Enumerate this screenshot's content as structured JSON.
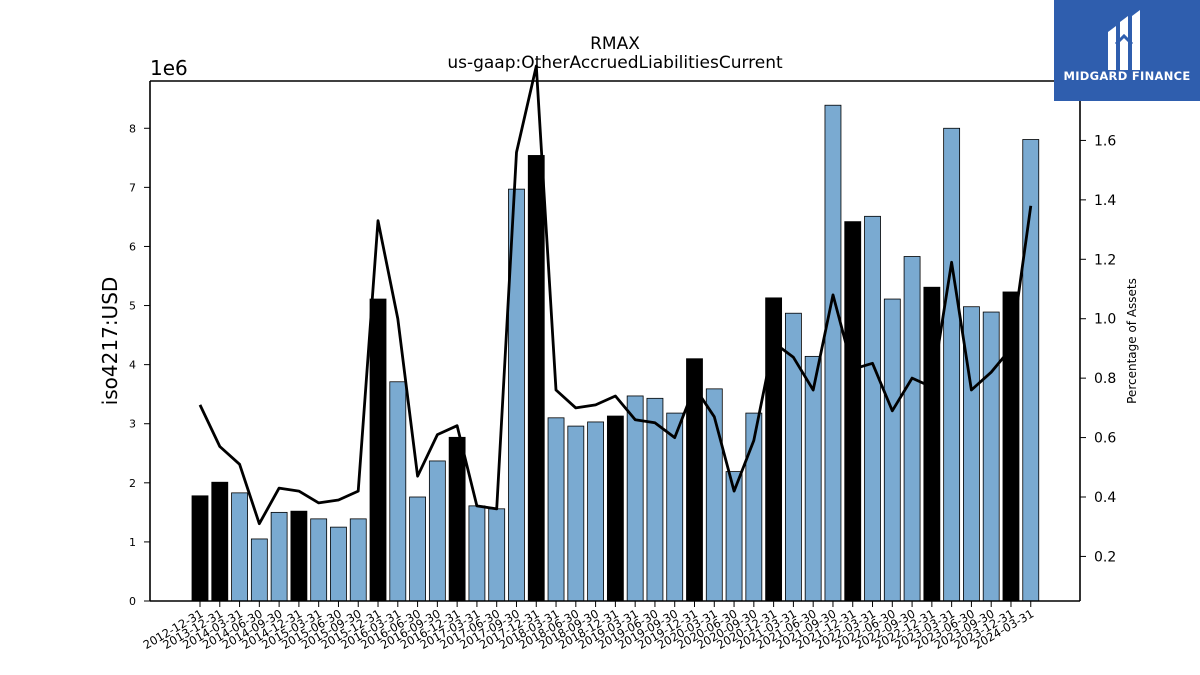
{
  "chart_data": {
    "type": "bar",
    "title": "RMAX",
    "subtitle": "us-gaap:OtherAccruedLiabilitiesCurrent",
    "ylabel": "iso4217:USD",
    "y_offset_label": "1e6",
    "y2label": "Percentage of Assets",
    "ylim": [
      0,
      8800000
    ],
    "y2lim": [
      0.05,
      1.8
    ],
    "yticks": [
      0,
      1,
      2,
      3,
      4,
      5,
      6,
      7,
      8
    ],
    "y2ticks": [
      0.2,
      0.4,
      0.6,
      0.8,
      1.0,
      1.2,
      1.4,
      1.6
    ],
    "categories": [
      "2012-12-31",
      "2013-12-31",
      "2014-03-31",
      "2014-06-30",
      "2014-09-30",
      "2014-12-31",
      "2015-03-31",
      "2015-06-30",
      "2015-09-30",
      "2015-12-31",
      "2016-03-31",
      "2016-06-30",
      "2016-09-30",
      "2016-12-31",
      "2017-03-31",
      "2017-06-30",
      "2017-09-30",
      "2017-12-31",
      "2018-03-31",
      "2018-06-30",
      "2018-09-30",
      "2018-12-31",
      "2019-03-31",
      "2019-06-30",
      "2019-09-30",
      "2019-12-31",
      "2020-03-31",
      "2020-06-30",
      "2020-09-30",
      "2020-12-31",
      "2021-03-31",
      "2021-06-30",
      "2021-09-30",
      "2021-12-31",
      "2022-03-31",
      "2022-06-30",
      "2022-09-30",
      "2022-12-31",
      "2023-03-31",
      "2023-06-30",
      "2023-09-30",
      "2023-12-31",
      "2024-03-31"
    ],
    "series": [
      {
        "values": [
          1780000,
          2010000,
          1830000,
          1050000,
          1500000,
          1520000,
          1390000,
          1250000,
          1390000,
          5110000,
          3710000,
          1760000,
          2370000,
          2770000,
          1610000,
          1560000,
          6970000,
          7540000,
          3100000,
          2960000,
          3030000,
          3130000,
          3470000,
          3430000,
          3180000,
          4100000,
          3590000,
          2190000,
          3180000,
          5130000,
          4870000,
          4140000,
          8390000,
          6420000,
          6510000,
          5110000,
          5830000,
          5310000,
          8000000,
          4980000,
          4890000,
          5230000,
          7810000
        ],
        "highlight": [
          true,
          true,
          false,
          false,
          false,
          true,
          false,
          false,
          false,
          true,
          false,
          false,
          false,
          true,
          false,
          false,
          false,
          true,
          false,
          false,
          false,
          true,
          false,
          false,
          false,
          true,
          false,
          false,
          false,
          true,
          false,
          false,
          false,
          true,
          false,
          false,
          false,
          true,
          false,
          false,
          false,
          true,
          false
        ]
      },
      {
        "axis": "right",
        "values": [
          0.71,
          0.57,
          0.51,
          0.31,
          0.43,
          0.42,
          0.38,
          0.39,
          0.42,
          1.33,
          1.0,
          0.47,
          0.61,
          0.64,
          0.37,
          0.36,
          1.56,
          1.85,
          0.76,
          0.7,
          0.71,
          0.74,
          0.66,
          0.65,
          0.6,
          0.77,
          0.67,
          0.42,
          0.59,
          0.92,
          0.87,
          0.76,
          1.08,
          0.83,
          0.85,
          0.69,
          0.8,
          0.77,
          1.19,
          0.76,
          0.82,
          0.9,
          1.38
        ]
      }
    ],
    "colors": {
      "bar": "#7aaad1",
      "bar_highlight": "#000000",
      "line": "#000000"
    },
    "grid": false,
    "legend": "none"
  },
  "logo": {
    "text": "MIDGARD FINANCE",
    "background": "#2f5eae"
  }
}
